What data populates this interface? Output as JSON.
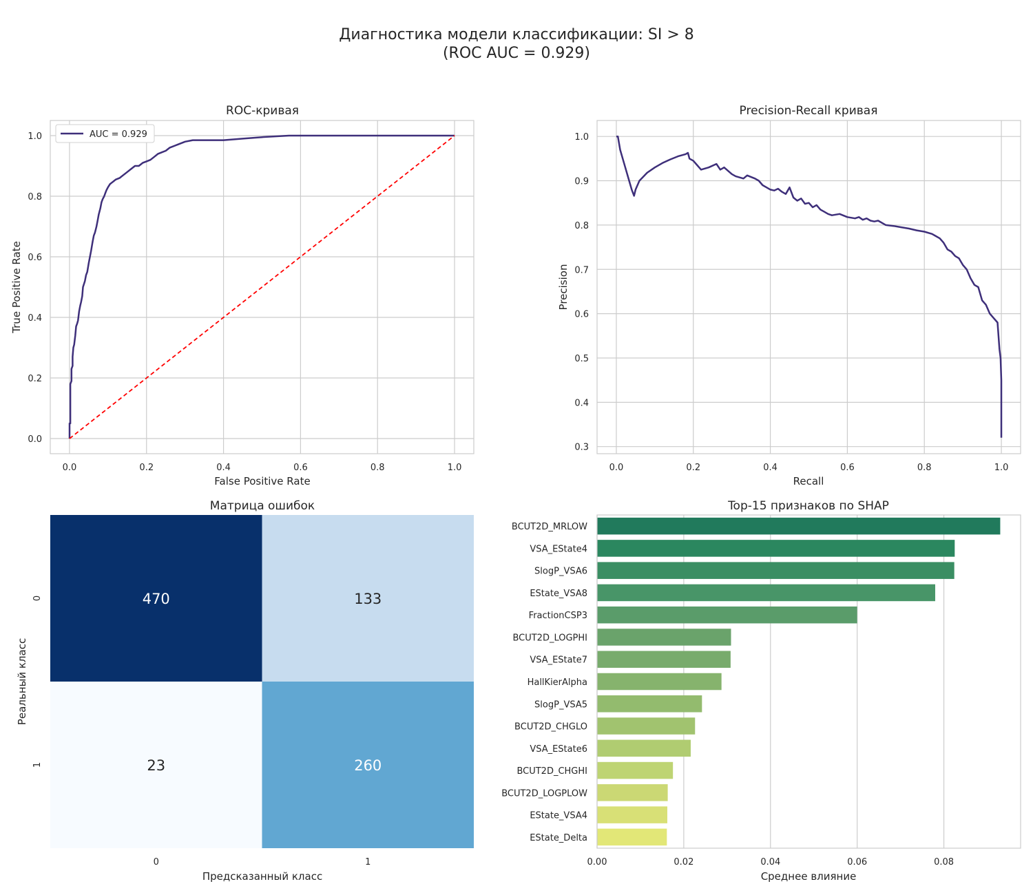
{
  "suptitle": {
    "line1": "Диагностика модели классификации: SI > 8",
    "line2": "(ROC AUC = 0.929)"
  },
  "colors": {
    "curve": "#3e2f7a",
    "diagonal": "#ff0000",
    "grid": "#cccccc",
    "axes_border": "#cccccc",
    "text": "#262626"
  },
  "chart_data": [
    {
      "id": "roc",
      "type": "line",
      "title": "ROC-кривая",
      "xlabel": "False Positive Rate",
      "ylabel": "True Positive Rate",
      "xlim": [
        -0.05,
        1.05
      ],
      "ylim": [
        -0.05,
        1.05
      ],
      "xticks": [
        "0.0",
        "0.2",
        "0.4",
        "0.6",
        "0.8",
        "1.0"
      ],
      "yticks": [
        "0.0",
        "0.2",
        "0.4",
        "0.6",
        "0.8",
        "1.0"
      ],
      "grid": true,
      "legend": {
        "position": "top-left",
        "entries": [
          "AUC = 0.929"
        ]
      },
      "series": [
        {
          "name": "AUC = 0.929",
          "style": "solid",
          "x": [
            0.0,
            0.0,
            0.002,
            0.002,
            0.005,
            0.005,
            0.008,
            0.008,
            0.01,
            0.012,
            0.015,
            0.017,
            0.02,
            0.022,
            0.025,
            0.028,
            0.03,
            0.033,
            0.035,
            0.04,
            0.043,
            0.046,
            0.05,
            0.053,
            0.056,
            0.06,
            0.063,
            0.066,
            0.07,
            0.073,
            0.076,
            0.08,
            0.083,
            0.086,
            0.09,
            0.093,
            0.096,
            0.1,
            0.105,
            0.11,
            0.115,
            0.12,
            0.13,
            0.14,
            0.15,
            0.16,
            0.17,
            0.18,
            0.19,
            0.2,
            0.21,
            0.22,
            0.23,
            0.24,
            0.25,
            0.26,
            0.28,
            0.3,
            0.32,
            0.35,
            0.4,
            0.45,
            0.5,
            0.57,
            0.6,
            0.7,
            0.8,
            0.9,
            1.0
          ],
          "y": [
            0.0,
            0.05,
            0.05,
            0.18,
            0.19,
            0.23,
            0.24,
            0.27,
            0.3,
            0.31,
            0.34,
            0.37,
            0.38,
            0.39,
            0.42,
            0.44,
            0.45,
            0.47,
            0.5,
            0.52,
            0.54,
            0.55,
            0.58,
            0.6,
            0.62,
            0.65,
            0.67,
            0.68,
            0.7,
            0.72,
            0.74,
            0.76,
            0.78,
            0.79,
            0.8,
            0.81,
            0.82,
            0.83,
            0.84,
            0.845,
            0.85,
            0.855,
            0.86,
            0.87,
            0.88,
            0.89,
            0.9,
            0.9,
            0.91,
            0.915,
            0.92,
            0.93,
            0.94,
            0.945,
            0.95,
            0.96,
            0.97,
            0.98,
            0.985,
            0.985,
            0.985,
            0.99,
            0.995,
            1.0,
            1.0,
            1.0,
            1.0,
            1.0,
            1.0
          ]
        },
        {
          "name": "",
          "style": "dashed",
          "x": [
            0,
            1
          ],
          "y": [
            0,
            1
          ]
        }
      ]
    },
    {
      "id": "pr",
      "type": "line",
      "title": "Precision-Recall кривая",
      "xlabel": "Recall",
      "ylabel": "Precision",
      "xlim": [
        -0.05,
        1.05
      ],
      "ylim": [
        0.284,
        1.036
      ],
      "xticks": [
        "0.0",
        "0.2",
        "0.4",
        "0.6",
        "0.8",
        "1.0"
      ],
      "yticks": [
        "0.3",
        "0.4",
        "0.5",
        "0.6",
        "0.7",
        "0.8",
        "0.9",
        "1.0"
      ],
      "grid": true,
      "series": [
        {
          "name": "",
          "style": "solid",
          "x": [
            0.0,
            0.004,
            0.01,
            0.02,
            0.03,
            0.04,
            0.046,
            0.05,
            0.06,
            0.08,
            0.1,
            0.12,
            0.14,
            0.16,
            0.18,
            0.186,
            0.19,
            0.2,
            0.21,
            0.22,
            0.24,
            0.26,
            0.27,
            0.28,
            0.3,
            0.31,
            0.33,
            0.34,
            0.36,
            0.37,
            0.38,
            0.39,
            0.4,
            0.41,
            0.42,
            0.43,
            0.44,
            0.45,
            0.46,
            0.47,
            0.48,
            0.49,
            0.5,
            0.51,
            0.52,
            0.53,
            0.54,
            0.55,
            0.56,
            0.58,
            0.6,
            0.62,
            0.63,
            0.64,
            0.65,
            0.66,
            0.67,
            0.68,
            0.7,
            0.72,
            0.74,
            0.76,
            0.78,
            0.8,
            0.82,
            0.83,
            0.84,
            0.85,
            0.86,
            0.87,
            0.88,
            0.89,
            0.9,
            0.91,
            0.92,
            0.93,
            0.94,
            0.95,
            0.96,
            0.97,
            0.98,
            0.99,
            0.995,
            0.998,
            1.0,
            1.0
          ],
          "y": [
            1.0,
            1.0,
            0.97,
            0.94,
            0.91,
            0.88,
            0.866,
            0.88,
            0.9,
            0.918,
            0.93,
            0.94,
            0.948,
            0.955,
            0.96,
            0.963,
            0.95,
            0.945,
            0.935,
            0.925,
            0.93,
            0.938,
            0.925,
            0.93,
            0.915,
            0.91,
            0.905,
            0.912,
            0.905,
            0.9,
            0.89,
            0.885,
            0.88,
            0.878,
            0.882,
            0.875,
            0.87,
            0.885,
            0.862,
            0.855,
            0.86,
            0.848,
            0.85,
            0.84,
            0.845,
            0.835,
            0.83,
            0.825,
            0.822,
            0.825,
            0.818,
            0.815,
            0.818,
            0.812,
            0.815,
            0.81,
            0.808,
            0.81,
            0.8,
            0.798,
            0.795,
            0.792,
            0.788,
            0.785,
            0.78,
            0.775,
            0.77,
            0.76,
            0.745,
            0.74,
            0.73,
            0.725,
            0.71,
            0.7,
            0.68,
            0.665,
            0.66,
            0.63,
            0.62,
            0.6,
            0.59,
            0.58,
            0.52,
            0.5,
            0.45,
            0.32
          ]
        }
      ]
    },
    {
      "id": "cm",
      "type": "heatmap",
      "title": "Матрица ошибок",
      "xlabel": "Предсказанный класс",
      "ylabel": "Реальный класс",
      "x_categories": [
        "0",
        "1"
      ],
      "y_categories": [
        "0",
        "1"
      ],
      "values": [
        [
          470,
          133
        ],
        [
          23,
          260
        ]
      ],
      "colormap": "Blues",
      "vmin": 23,
      "vmax": 470
    },
    {
      "id": "shap",
      "type": "bar",
      "orientation": "horizontal",
      "title": "Top-15 признаков по SHAP",
      "xlabel": "Среднее влияние",
      "ylabel": "",
      "xlim": [
        0,
        0.0977
      ],
      "xticks": [
        "0.00",
        "0.02",
        "0.04",
        "0.06",
        "0.08"
      ],
      "grid": true,
      "colormap": "summer",
      "categories": [
        "BCUT2D_MRLOW",
        "VSA_EState4",
        "SlogP_VSA6",
        "EState_VSA8",
        "FractionCSP3",
        "BCUT2D_LOGPHI",
        "VSA_EState7",
        "HallKierAlpha",
        "SlogP_VSA5",
        "BCUT2D_CHGLO",
        "VSA_EState6",
        "BCUT2D_CHGHI",
        "BCUT2D_LOGPLOW",
        "EState_VSA4",
        "EState_Delta"
      ],
      "values": [
        0.093,
        0.0825,
        0.0824,
        0.078,
        0.06,
        0.0309,
        0.0308,
        0.0287,
        0.0242,
        0.0226,
        0.0216,
        0.0175,
        0.0163,
        0.0162,
        0.0161
      ],
      "bar_colors": [
        "#217a5c",
        "#2b875f",
        "#3a8e63",
        "#489568",
        "#5a9c6a",
        "#6aa36b",
        "#78ab6c",
        "#86b36d",
        "#93bb6e",
        "#a1c36f",
        "#b0cc71",
        "#bed473",
        "#cbd874",
        "#d8e076",
        "#e2e777"
      ]
    }
  ]
}
